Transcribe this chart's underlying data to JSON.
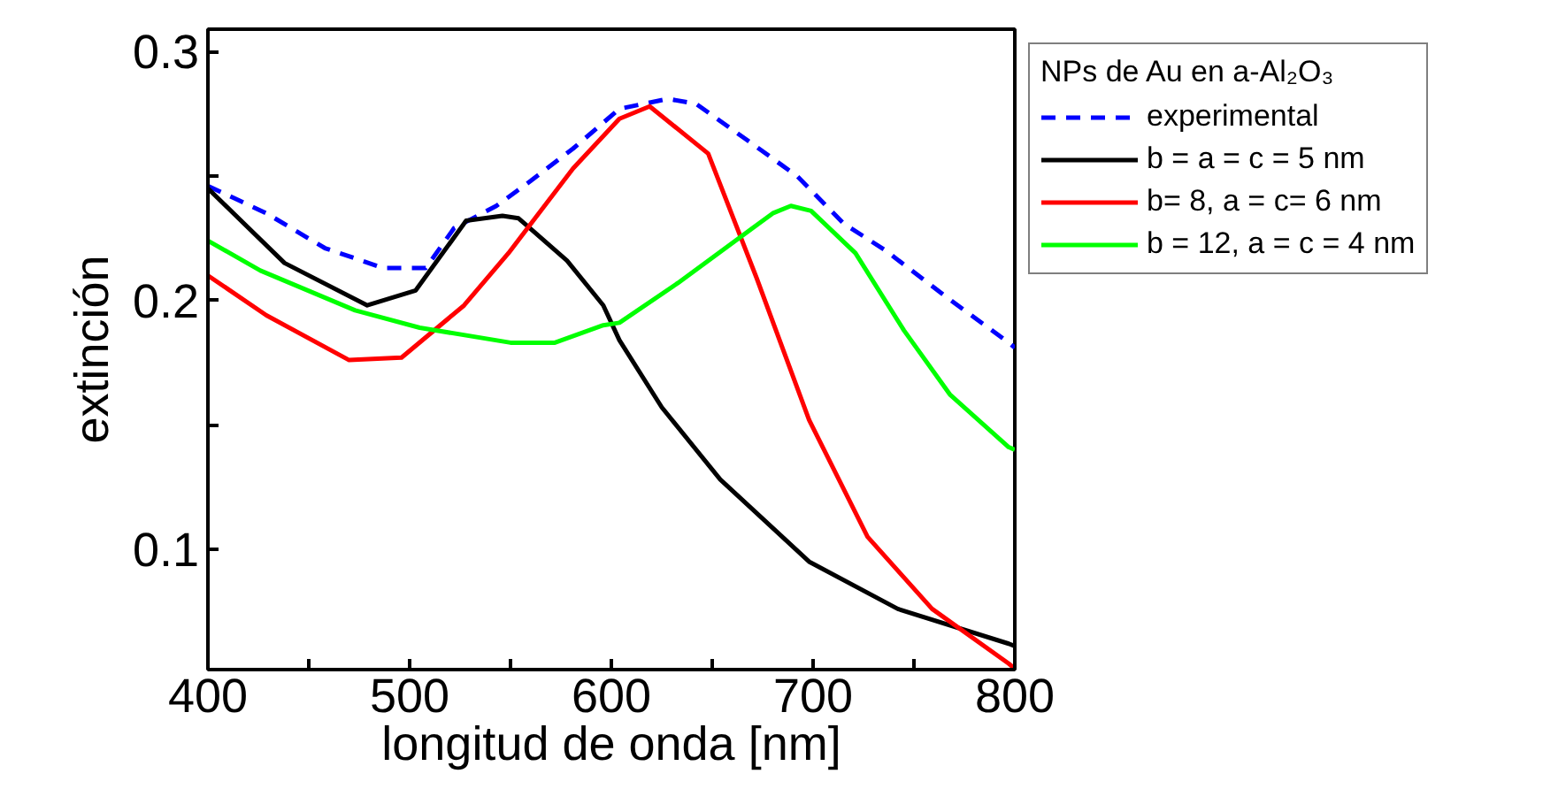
{
  "chart_data": {
    "type": "line",
    "xlabel": "longitud de onda [nm]",
    "ylabel": "extinción",
    "legend_title": "NPs de Au en a-Al₂O₃",
    "xlim": [
      400,
      800
    ],
    "ylim": [
      0.0516,
      0.309
    ],
    "xticks": [
      400,
      {
        "value": 450,
        "label": null
      },
      500,
      {
        "value": 550,
        "label": null
      },
      600,
      {
        "value": 650,
        "label": null
      },
      700,
      {
        "value": 750,
        "label": null
      },
      800
    ],
    "yticks": [
      0.1,
      {
        "value": 0.15,
        "label": null
      },
      0.2,
      {
        "value": 0.25,
        "label": null
      },
      0.3
    ],
    "grid": false,
    "legend": "right",
    "series": [
      {
        "name": "experimental",
        "color": "#0000ff",
        "line_style": "dashed",
        "x": [
          400,
          429,
          458,
          487,
          508,
          522,
          543,
          560,
          581,
          604,
          628,
          642,
          668,
          692,
          715,
          736,
          765,
          797,
          800
        ],
        "values": [
          0.246,
          0.235,
          0.221,
          0.213,
          0.213,
          0.229,
          0.238,
          0.248,
          0.261,
          0.277,
          0.281,
          0.279,
          0.264,
          0.25,
          0.231,
          0.22,
          0.202,
          0.183,
          0.181
        ]
      },
      {
        "name": "b = a = c = 5 nm",
        "color": "#000000",
        "line_style": "solid",
        "x": [
          400,
          438,
          479,
          503,
          528,
          546,
          554,
          578,
          596,
          604,
          625,
          654,
          698,
          742,
          797,
          800
        ],
        "values": [
          0.245,
          0.215,
          0.198,
          0.204,
          0.232,
          0.234,
          0.233,
          0.216,
          0.198,
          0.184,
          0.157,
          0.128,
          0.095,
          0.076,
          0.062,
          0.061
        ]
      },
      {
        "name": "b= 8, a = c= 6 nm",
        "color": "#ff0000",
        "line_style": "solid",
        "x": [
          400,
          429,
          470,
          496,
          527,
          549,
          581,
          604,
          619,
          648,
          672,
          698,
          727,
          759,
          797,
          800
        ],
        "values": [
          0.21,
          0.194,
          0.176,
          0.177,
          0.198,
          0.219,
          0.253,
          0.273,
          0.278,
          0.259,
          0.209,
          0.152,
          0.105,
          0.076,
          0.054,
          0.052
        ]
      },
      {
        "name": "b = 12, a = c = 4 nm",
        "color": "#00ff00",
        "line_style": "solid",
        "x": [
          400,
          426,
          473,
          505,
          550,
          572,
          596,
          604,
          633,
          680,
          689,
          699,
          721,
          745,
          768,
          797,
          800
        ],
        "values": [
          0.224,
          0.212,
          0.196,
          0.189,
          0.183,
          0.183,
          0.19,
          0.191,
          0.207,
          0.235,
          0.238,
          0.236,
          0.219,
          0.188,
          0.162,
          0.141,
          0.14
        ]
      }
    ]
  }
}
